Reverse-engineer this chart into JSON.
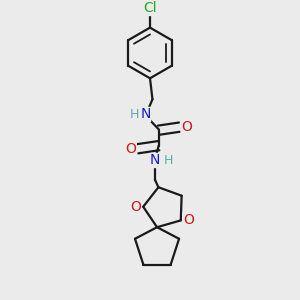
{
  "background_color": "#ebebeb",
  "bond_color": "#1a1a1a",
  "bond_width": 1.6,
  "atom_colors": {
    "H": "#5aadad",
    "N": "#1a1acc",
    "O": "#cc1a1a",
    "Cl": "#22aa22"
  },
  "figsize": [
    3.0,
    3.0
  ],
  "dpi": 100
}
